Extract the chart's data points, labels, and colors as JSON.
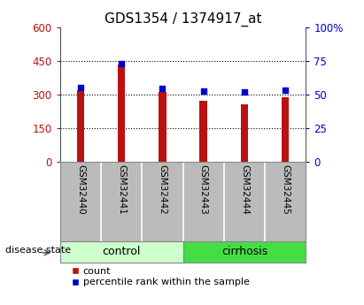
{
  "title": "GDS1354 / 1374917_at",
  "samples": [
    "GSM32440",
    "GSM32441",
    "GSM32442",
    "GSM32443",
    "GSM32444",
    "GSM32445"
  ],
  "counts": [
    320,
    435,
    310,
    272,
    255,
    288
  ],
  "percentile_ranks": [
    55.5,
    73.2,
    54.5,
    52.5,
    52.0,
    53.5
  ],
  "ylim_left": [
    0,
    600
  ],
  "ylim_right": [
    0,
    100
  ],
  "yticks_left": [
    0,
    150,
    300,
    450,
    600
  ],
  "yticks_right": [
    0,
    25,
    50,
    75,
    100
  ],
  "bar_color": "#bb1111",
  "scatter_color": "#0000cc",
  "grid_color": "black",
  "bar_width": 0.18,
  "groups": [
    {
      "label": "control",
      "start": 0,
      "end": 3,
      "color": "#ccffcc",
      "border": "#888888"
    },
    {
      "label": "cirrhosis",
      "start": 3,
      "end": 6,
      "color": "#44dd44",
      "border": "#888888"
    }
  ],
  "legend_count_label": "count",
  "legend_pct_label": "percentile rank within the sample",
  "disease_state_label": "disease state",
  "background_color": "#ffffff",
  "plot_bg_color": "#ffffff",
  "tick_area_bg": "#bbbbbb",
  "title_fontsize": 11,
  "axis_tick_fontsize": 8.5,
  "sample_label_fontsize": 7.5,
  "group_label_fontsize": 9,
  "legend_fontsize": 8
}
